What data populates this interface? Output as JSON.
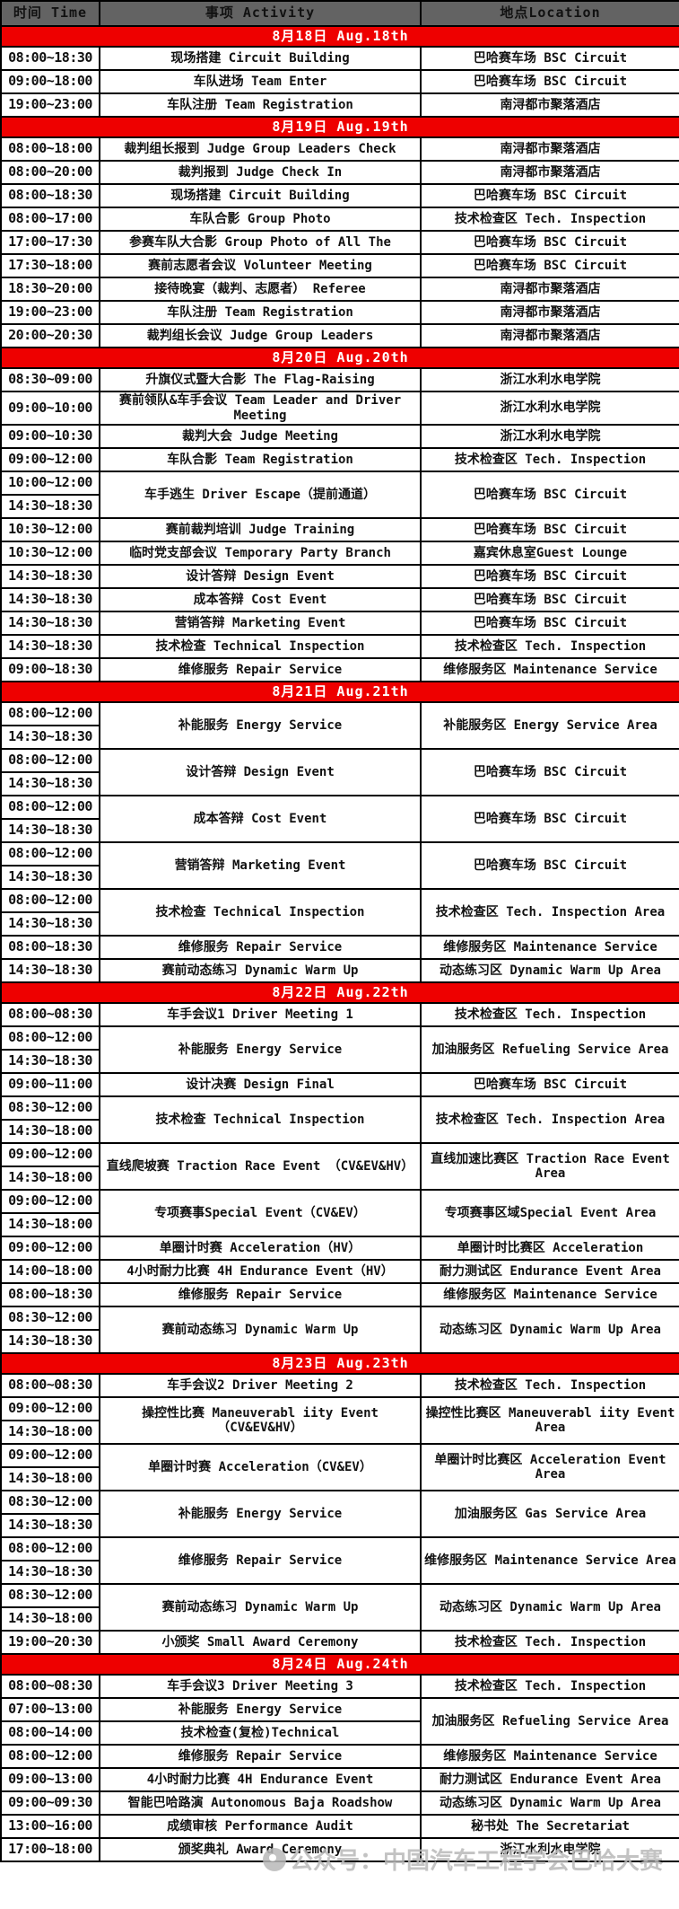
{
  "watermark": {
    "text": "公众号：中国汽车工程学会巴哈大赛",
    "icon": "official-account-logo-icon"
  },
  "colors": {
    "header_bg": "#636363",
    "header_text": "#ffffff",
    "date_band_bg": "#ee0000",
    "date_band_text": "#ffffff",
    "grid_border": "#000000",
    "cell_text": "#111111"
  },
  "table": {
    "headers": [
      "时间 Time",
      "事项 Activity",
      "地点Location"
    ],
    "sections": [
      {
        "date": "8月18日 Aug.18th",
        "rows": [
          {
            "times": [
              "08:00~18:30"
            ],
            "activity": "现场搭建 Circuit Building",
            "location": "巴哈赛车场 BSC Circuit"
          },
          {
            "times": [
              "09:00~18:00"
            ],
            "activity": "车队进场 Team Enter",
            "location": "巴哈赛车场 BSC Circuit"
          },
          {
            "times": [
              "19:00~23:00"
            ],
            "activity": "车队注册 Team Registration",
            "location": "南浔都市聚落酒店"
          }
        ]
      },
      {
        "date": "8月19日 Aug.19th",
        "rows": [
          {
            "times": [
              "08:00~18:00"
            ],
            "activity": "裁判组长报到 Judge Group Leaders Check",
            "location": "南浔都市聚落酒店"
          },
          {
            "times": [
              "08:00~20:00"
            ],
            "activity": "裁判报到 Judge Check In",
            "location": "南浔都市聚落酒店"
          },
          {
            "times": [
              "08:00~18:30"
            ],
            "activity": "现场搭建 Circuit Building",
            "location": "巴哈赛车场 BSC Circuit"
          },
          {
            "times": [
              "08:00~17:00"
            ],
            "activity": "车队合影 Group Photo",
            "location": "技术检查区 Tech. Inspection"
          },
          {
            "times": [
              "17:00~17:30"
            ],
            "activity": "参赛车队大合影 Group Photo of All The",
            "location": "巴哈赛车场 BSC Circuit"
          },
          {
            "times": [
              "17:30~18:00"
            ],
            "activity": "赛前志愿者会议 Volunteer Meeting",
            "location": "巴哈赛车场 BSC Circuit"
          },
          {
            "times": [
              "18:30~20:00"
            ],
            "activity": "接待晚宴（裁判、志愿者） Referee",
            "location": "南浔都市聚落酒店"
          },
          {
            "times": [
              "19:00~23:00"
            ],
            "activity": "车队注册 Team Registration",
            "location": "南浔都市聚落酒店"
          },
          {
            "times": [
              "20:00~20:30"
            ],
            "activity": "裁判组长会议 Judge Group Leaders",
            "location": "南浔都市聚落酒店"
          }
        ]
      },
      {
        "date": "8月20日 Aug.20th",
        "rows": [
          {
            "times": [
              "08:30~09:00"
            ],
            "activity": "升旗仪式暨大合影 The Flag-Raising",
            "location": "浙江水利水电学院"
          },
          {
            "times": [
              "09:00~10:00"
            ],
            "activity": "赛前领队&车手会议 Team Leader and Driver Meeting",
            "location": "浙江水利水电学院"
          },
          {
            "times": [
              "09:00~10:30"
            ],
            "activity": "裁判大会 Judge Meeting",
            "location": "浙江水利水电学院"
          },
          {
            "times": [
              "09:00~12:00"
            ],
            "activity": "车队合影 Team Registration",
            "location": "技术检查区 Tech. Inspection"
          },
          {
            "times": [
              "10:00~12:00",
              "14:30~18:30"
            ],
            "activity": "车手逃生 Driver Escape（提前通道）",
            "location": "巴哈赛车场 BSC Circuit"
          },
          {
            "times": [
              "10:30~12:00"
            ],
            "activity": "赛前裁判培训 Judge Training",
            "location": "巴哈赛车场 BSC Circuit"
          },
          {
            "times": [
              "10:30~12:00"
            ],
            "activity": "临时党支部会议 Temporary Party Branch",
            "location": "嘉宾休息室Guest Lounge"
          },
          {
            "times": [
              "14:30~18:30"
            ],
            "activity": "设计答辩 Design Event",
            "location": "巴哈赛车场 BSC Circuit"
          },
          {
            "times": [
              "14:30~18:30"
            ],
            "activity": "成本答辩 Cost Event",
            "location": "巴哈赛车场 BSC Circuit"
          },
          {
            "times": [
              "14:30~18:30"
            ],
            "activity": "营销答辩 Marketing Event",
            "location": "巴哈赛车场 BSC Circuit"
          },
          {
            "times": [
              "14:30~18:30"
            ],
            "activity": "技术检查 Technical Inspection",
            "location": "技术检查区 Tech. Inspection"
          },
          {
            "times": [
              "09:00~18:30"
            ],
            "activity": "维修服务 Repair Service",
            "location": "维修服务区 Maintenance Service"
          }
        ]
      },
      {
        "date": "8月21日 Aug.21th",
        "rows": [
          {
            "times": [
              "08:00~12:00",
              "14:30~18:30"
            ],
            "activity": "补能服务 Energy Service",
            "location": "补能服务区 Energy Service Area"
          },
          {
            "times": [
              "08:00~12:00",
              "14:30~18:30"
            ],
            "activity": "设计答辩 Design Event",
            "location": "巴哈赛车场 BSC Circuit"
          },
          {
            "times": [
              "08:00~12:00",
              "14:30~18:30"
            ],
            "activity": "成本答辩 Cost Event",
            "location": "巴哈赛车场 BSC Circuit"
          },
          {
            "times": [
              "08:00~12:00",
              "14:30~18:30"
            ],
            "activity": "营销答辩 Marketing Event",
            "location": "巴哈赛车场 BSC Circuit"
          },
          {
            "times": [
              "08:00~12:00",
              "14:30~18:30"
            ],
            "activity": "技术检查 Technical Inspection",
            "location": "技术检查区 Tech. Inspection Area"
          },
          {
            "times": [
              "08:00~18:30"
            ],
            "activity": "维修服务 Repair Service",
            "location": "维修服务区 Maintenance Service"
          },
          {
            "times": [
              "14:30~18:30"
            ],
            "activity": "赛前动态练习 Dynamic Warm Up",
            "location": "动态练习区 Dynamic Warm Up Area"
          }
        ]
      },
      {
        "date": "8月22日 Aug.22th",
        "rows": [
          {
            "times": [
              "08:00~08:30"
            ],
            "activity": "车手会议1 Driver Meeting 1",
            "location": "技术检查区 Tech. Inspection"
          },
          {
            "times": [
              "08:00~12:00",
              "14:30~18:30"
            ],
            "activity": "补能服务 Energy Service",
            "location": "加油服务区 Refueling Service Area"
          },
          {
            "times": [
              "09:00~11:00"
            ],
            "activity": "设计决赛 Design Final",
            "location": "巴哈赛车场 BSC Circuit"
          },
          {
            "times": [
              "08:30~12:00",
              "14:30~18:00"
            ],
            "activity": "技术检查 Technical Inspection",
            "location": "技术检查区 Tech. Inspection Area"
          },
          {
            "times": [
              "09:00~12:00",
              "14:30~18:00"
            ],
            "activity": "直线爬坡赛 Traction Race Event （CV&EV&HV）",
            "location": "直线加速比赛区 Traction Race Event Area"
          },
          {
            "times": [
              "09:00~12:00",
              "14:30~18:00"
            ],
            "activity": "专项赛事Special Event（CV&EV）",
            "location": "专项赛事区域Special Event Area"
          },
          {
            "times": [
              "09:00~12:00"
            ],
            "activity": "单圈计时赛 Acceleration（HV）",
            "location": "单圈计时比赛区 Acceleration"
          },
          {
            "times": [
              "14:00~18:00"
            ],
            "activity": "4小时耐力比赛  4H Endurance Event（HV）",
            "location": "耐力测试区 Endurance Event Area"
          },
          {
            "times": [
              "08:00~18:30"
            ],
            "activity": "维修服务 Repair Service",
            "location": "维修服务区 Maintenance Service"
          },
          {
            "times": [
              "08:30~12:00",
              "14:30~18:30"
            ],
            "activity": "赛前动态练习 Dynamic Warm Up",
            "location": "动态练习区 Dynamic Warm Up Area"
          }
        ]
      },
      {
        "date": "8月23日 Aug.23th",
        "rows": [
          {
            "times": [
              "08:00~08:30"
            ],
            "activity": "车手会议2 Driver Meeting 2",
            "location": "技术检查区 Tech. Inspection"
          },
          {
            "times": [
              "09:00~12:00",
              "14:30~18:00"
            ],
            "activity": "操控性比赛 Maneuverabl iity Event （CV&EV&HV）",
            "location": "操控性比赛区 Maneuverabl iity Event Area"
          },
          {
            "times": [
              "09:00~12:00",
              "14:30~18:00"
            ],
            "activity": "单圈计时赛 Acceleration（CV&EV）",
            "location": "单圈计时比赛区 Acceleration Event Area"
          },
          {
            "times": [
              "08:30~12:00",
              "14:30~18:30"
            ],
            "activity": "补能服务 Energy Service",
            "location": "加油服务区 Gas Service Area"
          },
          {
            "times": [
              "08:00~12:00",
              "14:30~18:30"
            ],
            "activity": "维修服务 Repair Service",
            "location": "维修服务区 Maintenance Service Area"
          },
          {
            "times": [
              "08:30~12:00",
              "14:30~18:00"
            ],
            "activity": "赛前动态练习 Dynamic Warm Up",
            "location": "动态练习区 Dynamic Warm Up Area"
          },
          {
            "times": [
              "19:00~20:30"
            ],
            "activity": "小颁奖 Small Award Ceremony",
            "location": "技术检查区 Tech. Inspection"
          }
        ]
      },
      {
        "date": "8月24日 Aug.24th",
        "rows": [
          {
            "times": [
              "08:00~08:30"
            ],
            "activity": "车手会议3 Driver Meeting 3",
            "location": "技术检查区 Tech. Inspection"
          },
          {
            "times": [
              "07:00~13:00"
            ],
            "activity": "补能服务 Energy Service",
            "location": "加油服务区 Refueling Service Area",
            "location_rowspan": 2
          },
          {
            "times": [
              "08:00~14:00"
            ],
            "activity": "技术检查(复检)Technical",
            "location": null
          },
          {
            "times": [
              "08:00~12:00"
            ],
            "activity": "维修服务 Repair Service",
            "location": "维修服务区 Maintenance Service"
          },
          {
            "times": [
              "09:00~13:00"
            ],
            "activity": "4小时耐力比赛  4H Endurance Event",
            "location": "耐力测试区 Endurance Event Area"
          },
          {
            "times": [
              "09:00~09:30"
            ],
            "activity": "智能巴哈路演 Autonomous Baja Roadshow",
            "location": "动态练习区 Dynamic Warm Up Area"
          },
          {
            "times": [
              "13:00~16:00"
            ],
            "activity": "成绩审核 Performance Audit",
            "location": "秘书处 The Secretariat"
          },
          {
            "times": [
              "17:00~18:00"
            ],
            "activity": "颁奖典礼 Award Ceremony",
            "location": "浙江水利水电学院"
          }
        ]
      }
    ]
  }
}
